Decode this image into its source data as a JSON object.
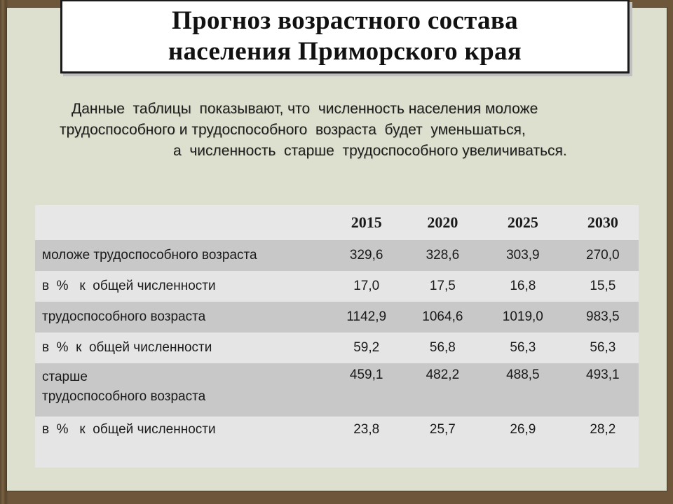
{
  "title": {
    "line1": "Прогноз  возрастного  состава",
    "line2": "населения Приморского края"
  },
  "intro": {
    "line1": "Данные  таблицы  показывают, что  численность населения моложе",
    "line2": "трудоспособного и трудоспособного  возраста  будет  уменьшаться,",
    "line3": "а  численность  старше  трудоспособного увеличиваться."
  },
  "table": {
    "years": [
      "2015",
      "2020",
      "2025",
      "2030"
    ],
    "rows": [
      {
        "label": "моложе  трудоспособного возраста",
        "values": [
          "329,6",
          "328,6",
          "303,9",
          "270,0"
        ]
      },
      {
        "label": "в  %   к  общей численности",
        "values": [
          "17,0",
          "17,5",
          "16,8",
          "15,5"
        ]
      },
      {
        "label": "трудоспособного возраста",
        "values": [
          "1142,9",
          "1064,6",
          "1019,0",
          "983,5"
        ]
      },
      {
        "label": "в  %  к  общей численности",
        "values": [
          "59,2",
          "56,8",
          "56,3",
          "56,3"
        ]
      },
      {
        "label_line1": "старше",
        "label_line2": "трудоспособного возраста",
        "values": [
          "459,1",
          "482,2",
          "488,5",
          "493,1"
        ]
      },
      {
        "label": "в  %   к  общей численности",
        "values": [
          "23,8",
          "25,7",
          "26,9",
          "28,2"
        ]
      }
    ]
  }
}
